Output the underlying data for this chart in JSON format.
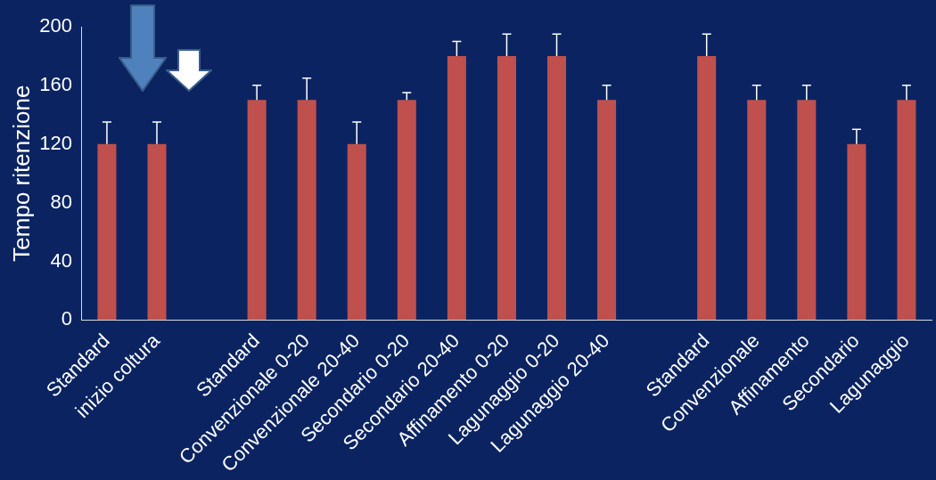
{
  "chart_data": {
    "type": "bar",
    "ylabel": "Tempo ritenzione",
    "categories": [
      "Standard",
      "inizio coltura",
      null,
      "Standard",
      "Convenzionale 0-20",
      "Convenzionale 20-40",
      "Secondario 0-20",
      "Secondario 20-40",
      "Affinamento 0-20",
      "Lagunaggio 0-20",
      "Lagunaggio 20-40",
      null,
      "Standard",
      "Convenzionale",
      "Affinamento",
      "Secondario",
      "Lagunaggio"
    ],
    "values": [
      120,
      120,
      null,
      150,
      150,
      120,
      150,
      180,
      180,
      180,
      150,
      null,
      180,
      150,
      150,
      120,
      150
    ],
    "errors": [
      [
        120,
        135
      ],
      [
        120,
        135
      ],
      null,
      [
        150,
        160
      ],
      [
        150,
        165
      ],
      [
        120,
        135
      ],
      [
        150,
        155
      ],
      [
        180,
        190
      ],
      [
        180,
        195
      ],
      [
        180,
        195
      ],
      [
        150,
        160
      ],
      null,
      [
        180,
        195
      ],
      [
        150,
        160
      ],
      [
        150,
        160
      ],
      [
        120,
        130
      ],
      [
        150,
        160
      ]
    ],
    "color": "#c0504d",
    "ylim": [
      0,
      200
    ],
    "yticks": [
      0,
      40,
      80,
      120,
      160,
      200
    ],
    "grid": false,
    "legend": false
  }
}
